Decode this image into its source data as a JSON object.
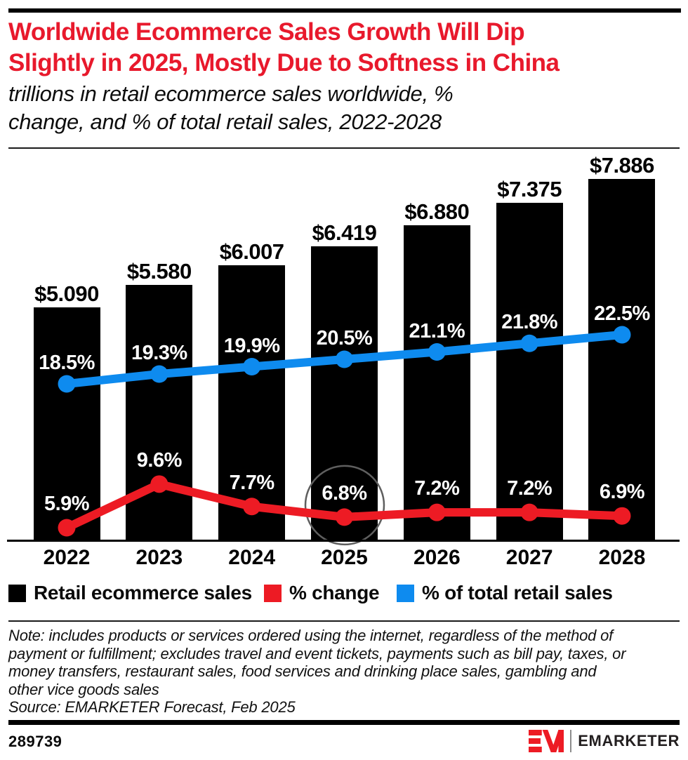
{
  "header": {
    "title": "Worldwide Ecommerce Sales Growth Will Dip\nSlightly in 2025, Mostly Due to Softness in China",
    "subtitle": "trillions in retail ecommerce sales worldwide, %\nchange, and % of total retail sales, 2022-2028"
  },
  "chart_data": {
    "type": "bar",
    "subtype": "bar-with-two-line-overlays",
    "categories": [
      "2022",
      "2023",
      "2024",
      "2025",
      "2026",
      "2027",
      "2028"
    ],
    "series": [
      {
        "name": "Retail ecommerce sales",
        "type": "bar",
        "unit": "trillions of US dollars",
        "color": "#000000",
        "values": [
          5.09,
          5.58,
          6.007,
          6.419,
          6.88,
          7.375,
          7.886
        ],
        "labels": [
          "$5.090",
          "$5.580",
          "$6.007",
          "$6.419",
          "$6.880",
          "$7.375",
          "$7.886"
        ]
      },
      {
        "name": "% change",
        "type": "line",
        "unit": "percent",
        "color": "#ed1b24",
        "values": [
          5.9,
          9.6,
          7.7,
          6.8,
          7.2,
          7.2,
          6.9
        ],
        "labels": [
          "5.9%",
          "9.6%",
          "7.7%",
          "6.8%",
          "7.2%",
          "7.2%",
          "6.9%"
        ]
      },
      {
        "name": "% of total retail sales",
        "type": "line",
        "unit": "percent",
        "color": "#0e8bef",
        "values": [
          18.5,
          19.3,
          19.9,
          20.5,
          21.1,
          21.8,
          22.5
        ],
        "labels": [
          "18.5%",
          "19.3%",
          "19.9%",
          "20.5%",
          "21.1%",
          "21.8%",
          "22.5%"
        ]
      }
    ],
    "annotation": {
      "shape": "circle",
      "category": "2025",
      "series": "% change",
      "value": 6.8,
      "color": "#5f5f5f"
    },
    "xlabel": "",
    "ylabel": "",
    "value_axis_visible": false,
    "grid": false,
    "legend_position": "bottom"
  },
  "legend": {
    "items": [
      {
        "label": "Retail ecommerce sales",
        "color": "#000000"
      },
      {
        "label": "% change",
        "color": "#ed1b24"
      },
      {
        "label": "% of total retail sales",
        "color": "#0e8bef"
      }
    ]
  },
  "footnote": {
    "note": "Note: includes products or services ordered using the internet, regardless of the method of\npayment or fulfillment; excludes travel and event tickets, payments such as bill pay, taxes, or\nmoney transfers, restaurant sales, food services and drinking place sales, gambling and\nother vice goods sales",
    "source": "Source: EMARKETER Forecast, Feb 2025"
  },
  "footer": {
    "chart_id": "289739",
    "brand": "EMARKETER"
  },
  "colors": {
    "title_red": "#e8192c",
    "accent_red": "#ed1b24",
    "accent_blue": "#0e8bef",
    "bar_black": "#000000",
    "circle_gray": "#5f5f5f",
    "brand_dark": "#231f20"
  }
}
